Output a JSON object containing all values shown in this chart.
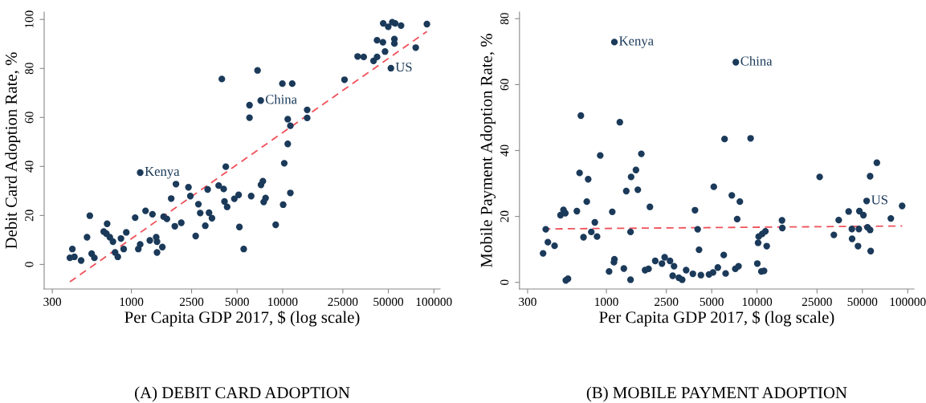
{
  "chart_data": [
    {
      "type": "scatter",
      "title": "(A) DEBIT CARD ADOPTION",
      "xlabel": "Per Capita GDP 2017, $ (log scale)",
      "ylabel": "Debit Card Adoption Rate, %",
      "log": "x",
      "xlim": [
        265,
        110000
      ],
      "xticks": [
        300,
        1000,
        2500,
        5000,
        10000,
        25000,
        50000,
        100000
      ],
      "ylim": [
        -10,
        103
      ],
      "yticks": [
        0,
        20,
        40,
        60,
        80,
        100
      ],
      "series": [
        {
          "marker": "circle",
          "color": "#1b3a5a",
          "x": [
            392,
            407,
            420,
            465,
            509,
            531,
            546,
            569,
            656,
            691,
            683,
            720,
            755,
            780,
            813,
            853,
            889,
            925,
            1059,
            1111,
            1143,
            1143,
            1240,
            1324,
            1378,
            1459,
            1477,
            1477,
            1602,
            1634,
            1717,
            1833,
            1937,
            1971,
            2137,
            2384,
            2454,
            2661,
            2773,
            2851,
            3080,
            3193,
            3260,
            3409,
            3776,
            3963,
            4074,
            4127,
            4209,
            4296,
            4794,
            5117,
            5179,
            5529,
            6040,
            6040,
            6194,
            6826,
            7165,
            7194,
            7401,
            7494,
            7713,
            8997,
            9960,
            10080,
            10250,
            10810,
            10810,
            11250,
            11250,
            11570,
            14530,
            14530,
            25650,
            31320,
            34360,
            39930,
            42100,
            42100,
            46030,
            46240,
            47550,
            49900,
            51990,
            53070,
            54820,
            54820,
            55460,
            60670,
            75860,
            89950
          ],
          "values": [
            2.7,
            6.3,
            3.1,
            1.6,
            11.1,
            19.9,
            4.4,
            2.7,
            13.4,
            16.6,
            12.6,
            11.1,
            9.3,
            4.9,
            3.1,
            10.6,
            6.3,
            13.1,
            19.1,
            6.3,
            8.2,
            37.5,
            21.9,
            9.8,
            20.5,
            11.1,
            9.3,
            4.9,
            7.1,
            19.5,
            18.6,
            26.9,
            15.6,
            32.8,
            17.0,
            31.5,
            27.9,
            11.6,
            24.6,
            21.0,
            15.8,
            30.6,
            21.1,
            18.9,
            32.2,
            75.7,
            30.8,
            25.7,
            39.9,
            23.5,
            26.8,
            28.4,
            15.3,
            6.3,
            65.0,
            59.9,
            27.9,
            79.2,
            66.9,
            32.5,
            34.0,
            25.5,
            27.1,
            16.2,
            73.8,
            24.4,
            41.3,
            59.3,
            49.2,
            56.6,
            29.2,
            73.8,
            63.1,
            59.8,
            75.4,
            84.9,
            84.7,
            83.1,
            91.5,
            84.7,
            90.7,
            98.4,
            86.9,
            97.0,
            80.1,
            98.9,
            92.0,
            90.2,
            98.4,
            97.5,
            88.5,
            98.1
          ]
        },
        {
          "type": "line",
          "color": "#f0505a",
          "line_style": "dashed",
          "x": [
            392,
            89950
          ],
          "values": [
            -7.1,
            95.1
          ]
        }
      ],
      "annotations": [
        {
          "text": "Kenya",
          "x": 1143,
          "y": 37.5
        },
        {
          "text": "China",
          "x": 7165,
          "y": 66.9
        },
        {
          "text": "US",
          "x": 51990,
          "y": 80.1
        }
      ]
    },
    {
      "type": "scatter",
      "title": "(B) MOBILE PAYMENT ADOPTION",
      "xlabel": "Per Capita GDP 2017, $ (log scale)",
      "ylabel": "Mobile Payment Adoption Rate, %",
      "log": "x",
      "xlim": [
        265,
        110000
      ],
      "xticks": [
        300,
        1000,
        2500,
        5000,
        10000,
        25000,
        50000,
        100000
      ],
      "ylim": [
        -2,
        82
      ],
      "yticks": [
        0,
        20,
        40,
        60,
        80
      ],
      "series": [
        {
          "marker": "circle",
          "color": "#1b3a5a",
          "x": [
            380,
            396,
            409,
            453,
            496,
            519,
            534,
            538,
            556,
            637,
            664,
            677,
            705,
            741,
            757,
            794,
            838,
            867,
            910,
            1042,
            1094,
            1122,
            1130,
            1130,
            1228,
            1306,
            1355,
            1446,
            1446,
            1459,
            1571,
            1617,
            1706,
            1806,
            1905,
            1945,
            2110,
            2338,
            2436,
            2644,
            2755,
            2812,
            3027,
            3184,
            3383,
            3750,
            3873,
            4036,
            4121,
            4240,
            4797,
            5102,
            5164,
            5490,
            6011,
            6086,
            6187,
            6799,
            7171,
            7229,
            7380,
            7534,
            7690,
            9060,
            10040,
            10160,
            10250,
            10680,
            10820,
            11130,
            11360,
            11590,
            14640,
            14710,
            26030,
            32340,
            34830,
            40540,
            42580,
            42730,
            46780,
            47400,
            47780,
            50800,
            53370,
            54040,
            56270,
            56270,
            56770,
            62390,
            77250,
            91780
          ],
          "values": [
            8.8,
            16.1,
            12.2,
            11.1,
            20.4,
            22.0,
            21.0,
            0.6,
            1.1,
            21.6,
            33.2,
            50.6,
            13.7,
            24.5,
            31.3,
            15.3,
            18.2,
            13.9,
            38.5,
            3.3,
            21.4,
            6.1,
            7.0,
            72.9,
            48.6,
            4.2,
            27.7,
            0.8,
            15.3,
            32.0,
            34.1,
            28.1,
            39.0,
            3.7,
            4.1,
            22.9,
            6.5,
            5.7,
            7.6,
            6.5,
            2.0,
            4.9,
            1.4,
            0.8,
            3.7,
            2.6,
            21.9,
            16.1,
            9.9,
            2.2,
            2.4,
            3.0,
            29.0,
            4.5,
            8.3,
            43.5,
            2.7,
            26.4,
            4.1,
            66.8,
            19.2,
            4.9,
            24.5,
            43.7,
            5.7,
            12.0,
            13.9,
            3.3,
            14.7,
            3.5,
            15.5,
            11.0,
            18.8,
            16.5,
            32.0,
            14.4,
            18.9,
            21.5,
            16.2,
            13.2,
            11.0,
            16.2,
            21.6,
            20.4,
            24.7,
            16.7,
            32.2,
            15.9,
            9.5,
            36.3,
            19.4,
            23.2
          ]
        },
        {
          "type": "line",
          "color": "#f0505a",
          "line_style": "dashed",
          "x": [
            380,
            91780
          ],
          "values": [
            16.2,
            17.1
          ]
        }
      ],
      "annotations": [
        {
          "text": "Kenya",
          "x": 1130,
          "y": 72.9
        },
        {
          "text": "China",
          "x": 7229,
          "y": 66.8
        },
        {
          "text": "US",
          "x": 53370,
          "y": 24.7
        }
      ]
    }
  ]
}
